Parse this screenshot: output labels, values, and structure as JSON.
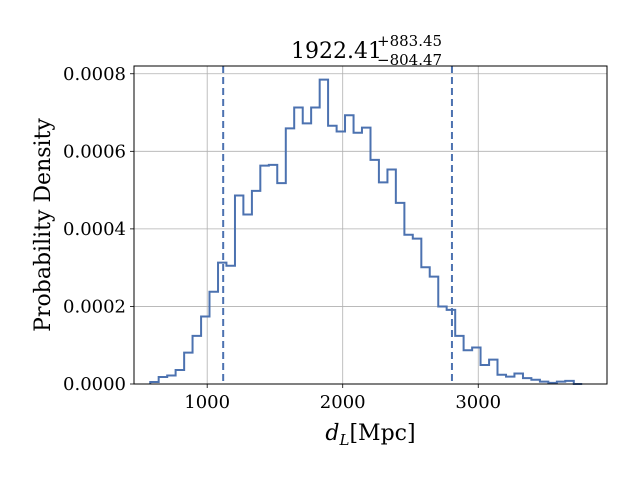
{
  "chart_data": {
    "type": "histogram",
    "title": {
      "value": "1922.41",
      "upper": "+883.45",
      "lower": "−804.47"
    },
    "xlabel": "d_L[Mpc]",
    "xlabel_main": "d",
    "xlabel_sub": "L",
    "xlabel_unit": "[Mpc]",
    "ylabel": "Probability Density",
    "xlim": [
      460,
      3950
    ],
    "ylim": [
      0,
      0.00082
    ],
    "xticks": [
      1000,
      2000,
      3000
    ],
    "xtick_labels": [
      "1000",
      "2000",
      "3000"
    ],
    "yticks": [
      0,
      0.0002,
      0.0004,
      0.0006,
      0.0008
    ],
    "ytick_labels": [
      "0.0000",
      "0.0002",
      "0.0004",
      "0.0006",
      "0.0008"
    ],
    "grid": true,
    "line_color": "#4c72b0",
    "bin_edges": [
      580,
      642,
      705,
      767,
      830,
      892,
      955,
      1017,
      1080,
      1142,
      1205,
      1267,
      1330,
      1392,
      1455,
      1517,
      1580,
      1642,
      1705,
      1767,
      1830,
      1892,
      1955,
      2017,
      2080,
      2142,
      2205,
      2267,
      2330,
      2392,
      2455,
      2517,
      2580,
      2642,
      2705,
      2767,
      2830,
      2892,
      2955,
      3017,
      3080,
      3142,
      3205,
      3267,
      3330,
      3392,
      3455,
      3517,
      3580,
      3642,
      3705,
      3767
    ],
    "density": [
      5e-06,
      1.8e-05,
      2.2e-05,
      3.6e-05,
      8.1e-05,
      0.000124,
      0.000174,
      0.000238,
      0.000313,
      0.000305,
      0.000486,
      0.000437,
      0.000498,
      0.000563,
      0.000565,
      0.000518,
      0.000659,
      0.000713,
      0.000672,
      0.000713,
      0.000785,
      0.000666,
      0.000651,
      0.000693,
      0.000648,
      0.000661,
      0.000578,
      0.00052,
      0.000553,
      0.000467,
      0.000385,
      0.000375,
      0.000301,
      0.000277,
      0.0002,
      0.000191,
      0.000124,
      8.7e-05,
      9.4e-05,
      4.9e-05,
      6.3e-05,
      2.4e-05,
      1.9e-05,
      2.7e-05,
      1.5e-05,
      1.1e-05,
      6e-06,
      3e-06,
      6e-06,
      8e-06,
      0.0
    ],
    "vlines": [
      1118,
      2806
    ]
  }
}
